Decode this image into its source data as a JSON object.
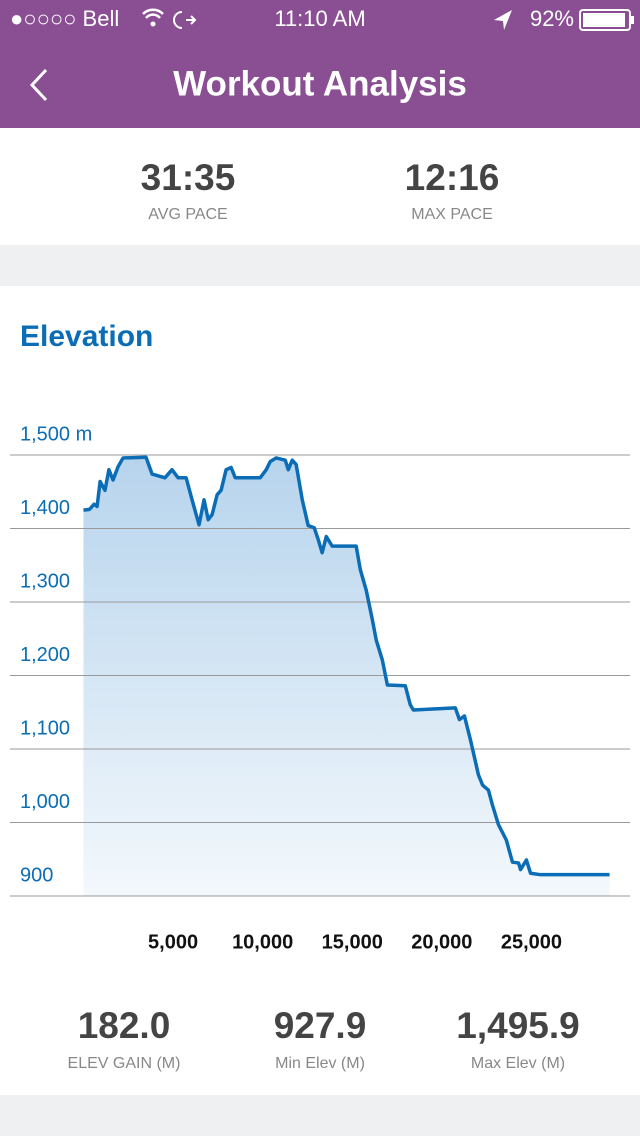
{
  "status_bar": {
    "carrier": "●○○○○ Bell",
    "time": "11:10 AM",
    "battery": "92%"
  },
  "header": {
    "title": "Workout Analysis"
  },
  "pace_stats": [
    {
      "value": "31:35",
      "label": "AVG PACE"
    },
    {
      "value": "12:16",
      "label": "MAX PACE"
    }
  ],
  "chart_data": {
    "type": "line",
    "title": "Elevation",
    "color": "#0b6db5",
    "grid": true,
    "x": [
      0,
      335,
      590,
      760,
      930,
      1200,
      1420,
      1650,
      1930,
      2210,
      3490,
      3830,
      4550,
      4940,
      5280,
      5730,
      6060,
      6290,
      6450,
      6730,
      6960,
      7180,
      7460,
      7680,
      7960,
      8240,
      8470,
      9860,
      10200,
      10420,
      10750,
      11260,
      11430,
      11650,
      11870,
      12210,
      12540,
      12880,
      13100,
      13320,
      13550,
      13880,
      15220,
      15450,
      15780,
      16120,
      16340,
      16680,
      16960,
      17960,
      18240,
      18410,
      20750,
      20980,
      21260,
      21600,
      22040,
      22270,
      22600,
      22820,
      23160,
      23600,
      23940,
      24280,
      24390,
      24720,
      24950,
      25500,
      29360
    ],
    "values": [
      1425,
      1426,
      1433,
      1430,
      1464,
      1452,
      1480,
      1466,
      1484,
      1496,
      1497,
      1474,
      1469,
      1480,
      1469,
      1469,
      1439,
      1419,
      1405,
      1439,
      1412,
      1419,
      1446,
      1452,
      1480,
      1483,
      1469,
      1469,
      1480,
      1491,
      1496,
      1493,
      1480,
      1493,
      1487,
      1439,
      1404,
      1401,
      1385,
      1367,
      1389,
      1376,
      1376,
      1344,
      1316,
      1276,
      1248,
      1221,
      1187,
      1186,
      1160,
      1153,
      1156,
      1140,
      1145,
      1112,
      1065,
      1051,
      1044,
      1024,
      997,
      976,
      946,
      945,
      936,
      949,
      931,
      929,
      929
    ],
    "xlim": [
      -4100,
      30500
    ],
    "ylim": [
      900,
      1500
    ],
    "xticks": [
      {
        "value": 5000,
        "label": "5,000"
      },
      {
        "value": 10000,
        "label": "10,000"
      },
      {
        "value": 15000,
        "label": "15,000"
      },
      {
        "value": 20000,
        "label": "20,000"
      },
      {
        "value": 25000,
        "label": "25,000"
      }
    ],
    "yticks": [
      900,
      {
        "value": 1000,
        "label": "1,000"
      },
      {
        "value": 1100,
        "label": "1,100"
      },
      {
        "value": 1200,
        "label": "1,200"
      },
      {
        "value": 1300,
        "label": "1,300"
      },
      {
        "value": 1400,
        "label": "1,400"
      },
      {
        "value": 1500,
        "label": "1,500 m"
      }
    ]
  },
  "elevation_stats": [
    {
      "value": "182.0",
      "label": "ELEV GAIN (M)"
    },
    {
      "value": "927.9",
      "label": "Min Elev (M)"
    },
    {
      "value": "1,495.9",
      "label": "Max Elev (M)"
    }
  ]
}
